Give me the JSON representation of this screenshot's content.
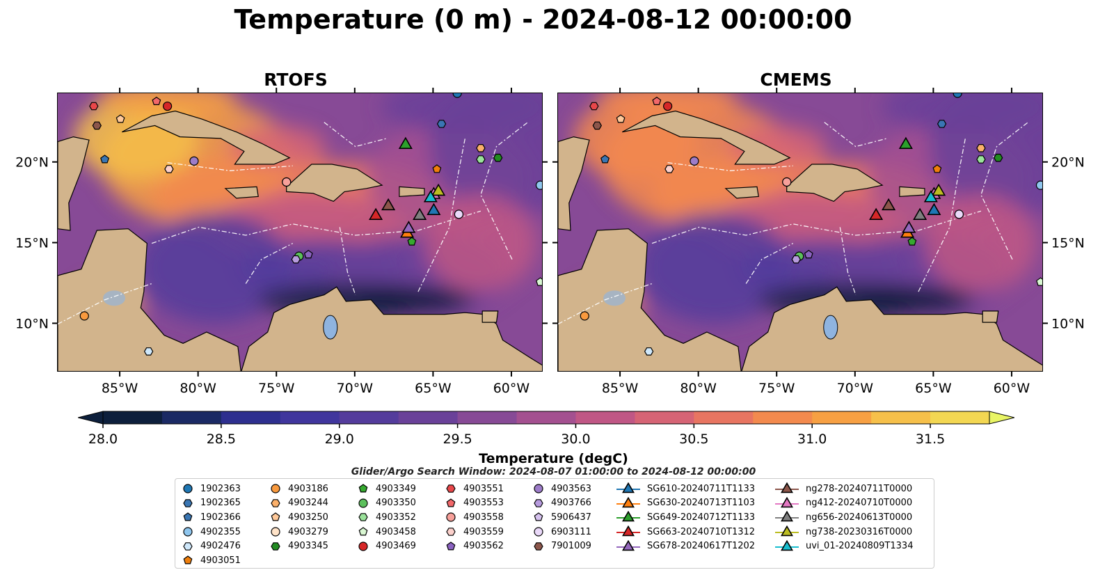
{
  "title": "Temperature (0 m) - 2024-08-12 00:00:00",
  "panels": [
    {
      "title": "RTOFS"
    },
    {
      "title": "CMEMS"
    }
  ],
  "colorbar": {
    "label": "Temperature (degC)",
    "ticks": [
      "28.0",
      "28.5",
      "29.0",
      "29.5",
      "30.0",
      "30.5",
      "31.0",
      "31.5"
    ],
    "tick_values": [
      28.0,
      28.5,
      29.0,
      29.5,
      30.0,
      30.5,
      31.0,
      31.5
    ],
    "range": [
      28.0,
      31.75
    ],
    "extend": "both",
    "colors": [
      "#0d1f3c",
      "#1b2a64",
      "#2e2f8f",
      "#40369d",
      "#543c9c",
      "#6a4199",
      "#874a96",
      "#a45090",
      "#c05785",
      "#d66475",
      "#e87561",
      "#f38a4e",
      "#f7a043",
      "#f6c04a",
      "#f3d752",
      "#e9f565"
    ]
  },
  "legend_title": "Glider/Argo Search Window: 2024-08-07 01:00:00 to 2024-08-12 00:00:00",
  "legend": [
    [
      {
        "label": "1902363",
        "marker": "circle",
        "color": "#1f77b4"
      },
      {
        "label": "1902365",
        "marker": "hexagon",
        "color": "#3a76b3"
      },
      {
        "label": "1902366",
        "marker": "pentagon",
        "color": "#3a76b3"
      },
      {
        "label": "4902355",
        "marker": "circle",
        "color": "#8fc6ee"
      },
      {
        "label": "4902476",
        "marker": "hexagon",
        "color": "#cfe8fb"
      },
      {
        "label": "4903051",
        "marker": "pentagon",
        "color": "#f07f0c"
      }
    ],
    [
      {
        "label": "4903186",
        "marker": "circle",
        "color": "#f99a3e"
      },
      {
        "label": "4903244",
        "marker": "hexagon",
        "color": "#fbb06a"
      },
      {
        "label": "4903250",
        "marker": "pentagon",
        "color": "#ffc99a"
      },
      {
        "label": "4903279",
        "marker": "circle",
        "color": "#ffe3c8"
      },
      {
        "label": "4903345",
        "marker": "hexagon",
        "color": "#228b22"
      }
    ],
    [
      {
        "label": "4903349",
        "marker": "pentagon",
        "color": "#36a92f"
      },
      {
        "label": "4903350",
        "marker": "circle",
        "color": "#5cc05c"
      },
      {
        "label": "4903352",
        "marker": "hexagon",
        "color": "#9be29b"
      },
      {
        "label": "4903458",
        "marker": "pentagon",
        "color": "#d9f7d2"
      },
      {
        "label": "4903469",
        "marker": "circle",
        "color": "#d62728"
      }
    ],
    [
      {
        "label": "4903551",
        "marker": "hexagon",
        "color": "#e8474a"
      },
      {
        "label": "4903553",
        "marker": "pentagon",
        "color": "#f2686a"
      },
      {
        "label": "4903558",
        "marker": "circle",
        "color": "#f7a09a"
      },
      {
        "label": "4903559",
        "marker": "hexagon",
        "color": "#fcd1cc"
      },
      {
        "label": "4903562",
        "marker": "pentagon",
        "color": "#8b62c1"
      }
    ],
    [
      {
        "label": "4903563",
        "marker": "circle",
        "color": "#9d7cc9"
      },
      {
        "label": "4903766",
        "marker": "hexagon",
        "color": "#b79bde"
      },
      {
        "label": "5906437",
        "marker": "pentagon",
        "color": "#d6c2ef"
      },
      {
        "label": "6903111",
        "marker": "circle",
        "color": "#ead9f9"
      },
      {
        "label": "7901009",
        "marker": "hexagon",
        "color": "#8c564b"
      }
    ],
    [
      {
        "label": "SG610-20240711T1133",
        "marker": "triangle",
        "color": "#1f77b4"
      },
      {
        "label": "SG630-20240713T1103",
        "marker": "triangle",
        "color": "#ff7f0e"
      },
      {
        "label": "SG649-20240712T1133",
        "marker": "triangle",
        "color": "#2ca02c"
      },
      {
        "label": "SG663-20240710T1312",
        "marker": "triangle",
        "color": "#d62728"
      },
      {
        "label": "SG678-20240617T1202",
        "marker": "triangle",
        "color": "#9467bd"
      }
    ],
    [
      {
        "label": "ng278-20240711T0000",
        "marker": "triangle",
        "color": "#8c564b"
      },
      {
        "label": "ng412-20240710T0000",
        "marker": "triangle",
        "color": "#e377c2"
      },
      {
        "label": "ng656-20240613T0000",
        "marker": "triangle",
        "color": "#7f7f7f"
      },
      {
        "label": "ng738-20230316T0000",
        "marker": "triangle",
        "color": "#bcbd22"
      },
      {
        "label": "uvi_01-20240809T1334",
        "marker": "triangle",
        "color": "#17becf"
      }
    ]
  ],
  "chart_data": {
    "type": "heatmap",
    "variable": "Temperature",
    "units": "degC",
    "depth": "0 m",
    "time": "2024-08-12 00:00:00",
    "xlim": [
      -89,
      -58
    ],
    "ylim": [
      7,
      24.3
    ],
    "xticks": [
      -85,
      -80,
      -75,
      -70,
      -65,
      -60
    ],
    "xtick_labels": [
      "85°W",
      "80°W",
      "75°W",
      "70°W",
      "65°W",
      "60°W"
    ],
    "yticks": [
      10,
      15,
      20
    ],
    "ytick_labels": [
      "10°N",
      "15°N",
      "20°N"
    ],
    "colorbar_range": [
      28.0,
      31.5
    ],
    "panels": [
      "RTOFS",
      "CMEMS"
    ],
    "argo_floats": [
      {
        "id": "1902363",
        "lon": -63.5,
        "lat": 24.3
      },
      {
        "id": "1902365",
        "lon": -64.5,
        "lat": 22.4
      },
      {
        "id": "4902355",
        "lon": -58.2,
        "lat": 18.6
      },
      {
        "id": "4902476",
        "lon": -83.2,
        "lat": 8.3
      },
      {
        "id": "4903051",
        "lon": -64.8,
        "lat": 19.6
      },
      {
        "id": "4903186",
        "lon": -87.3,
        "lat": 10.5
      },
      {
        "id": "4903244",
        "lon": -62.0,
        "lat": 20.9
      },
      {
        "id": "4903250",
        "lon": -85.0,
        "lat": 22.7
      },
      {
        "id": "4903279",
        "lon": -74.4,
        "lat": 18.8
      },
      {
        "id": "4903345",
        "lon": -60.9,
        "lat": 20.3
      },
      {
        "id": "4903349",
        "lon": -66.4,
        "lat": 15.1
      },
      {
        "id": "4903350",
        "lon": -73.6,
        "lat": 14.2
      },
      {
        "id": "4903352",
        "lon": -62.0,
        "lat": 20.2
      },
      {
        "id": "4903458",
        "lon": -58.2,
        "lat": 12.6
      },
      {
        "id": "4903469",
        "lon": -82.0,
        "lat": 23.5
      },
      {
        "id": "4903551",
        "lon": -86.7,
        "lat": 23.5
      },
      {
        "id": "4903553",
        "lon": -82.7,
        "lat": 23.8
      },
      {
        "id": "4903558",
        "lon": -74.4,
        "lat": 18.8
      },
      {
        "id": "4903559",
        "lon": -81.9,
        "lat": 19.6
      },
      {
        "id": "4903562",
        "lon": -73.0,
        "lat": 14.3
      },
      {
        "id": "4903563",
        "lon": -80.3,
        "lat": 20.1
      },
      {
        "id": "4903766",
        "lon": -73.8,
        "lat": 14.0
      },
      {
        "id": "6903111",
        "lon": -63.4,
        "lat": 16.8
      },
      {
        "id": "7901009",
        "lon": -86.5,
        "lat": 22.3
      },
      {
        "id": "1902366",
        "lon": -86.0,
        "lat": 20.2
      }
    ],
    "gliders": [
      {
        "id": "SG610-20240711T1133",
        "lon": -65.0,
        "lat": 17.0
      },
      {
        "id": "SG630-20240713T1103",
        "lon": -66.7,
        "lat": 15.6
      },
      {
        "id": "SG649-20240712T1133",
        "lon": -66.8,
        "lat": 21.1
      },
      {
        "id": "SG663-20240710T1312",
        "lon": -68.7,
        "lat": 16.7
      },
      {
        "id": "SG678-20240617T1202",
        "lon": -66.6,
        "lat": 15.9
      },
      {
        "id": "ng278-20240711T0000",
        "lon": -67.9,
        "lat": 17.3
      },
      {
        "id": "ng412-20240710T0000",
        "lon": -65.0,
        "lat": 18.0
      },
      {
        "id": "ng656-20240613T0000",
        "lon": -65.9,
        "lat": 16.7
      },
      {
        "id": "ng738-20230316T0000",
        "lon": -64.7,
        "lat": 18.2
      },
      {
        "id": "uvi_01-20240809T1334",
        "lon": -65.2,
        "lat": 17.8
      }
    ]
  }
}
